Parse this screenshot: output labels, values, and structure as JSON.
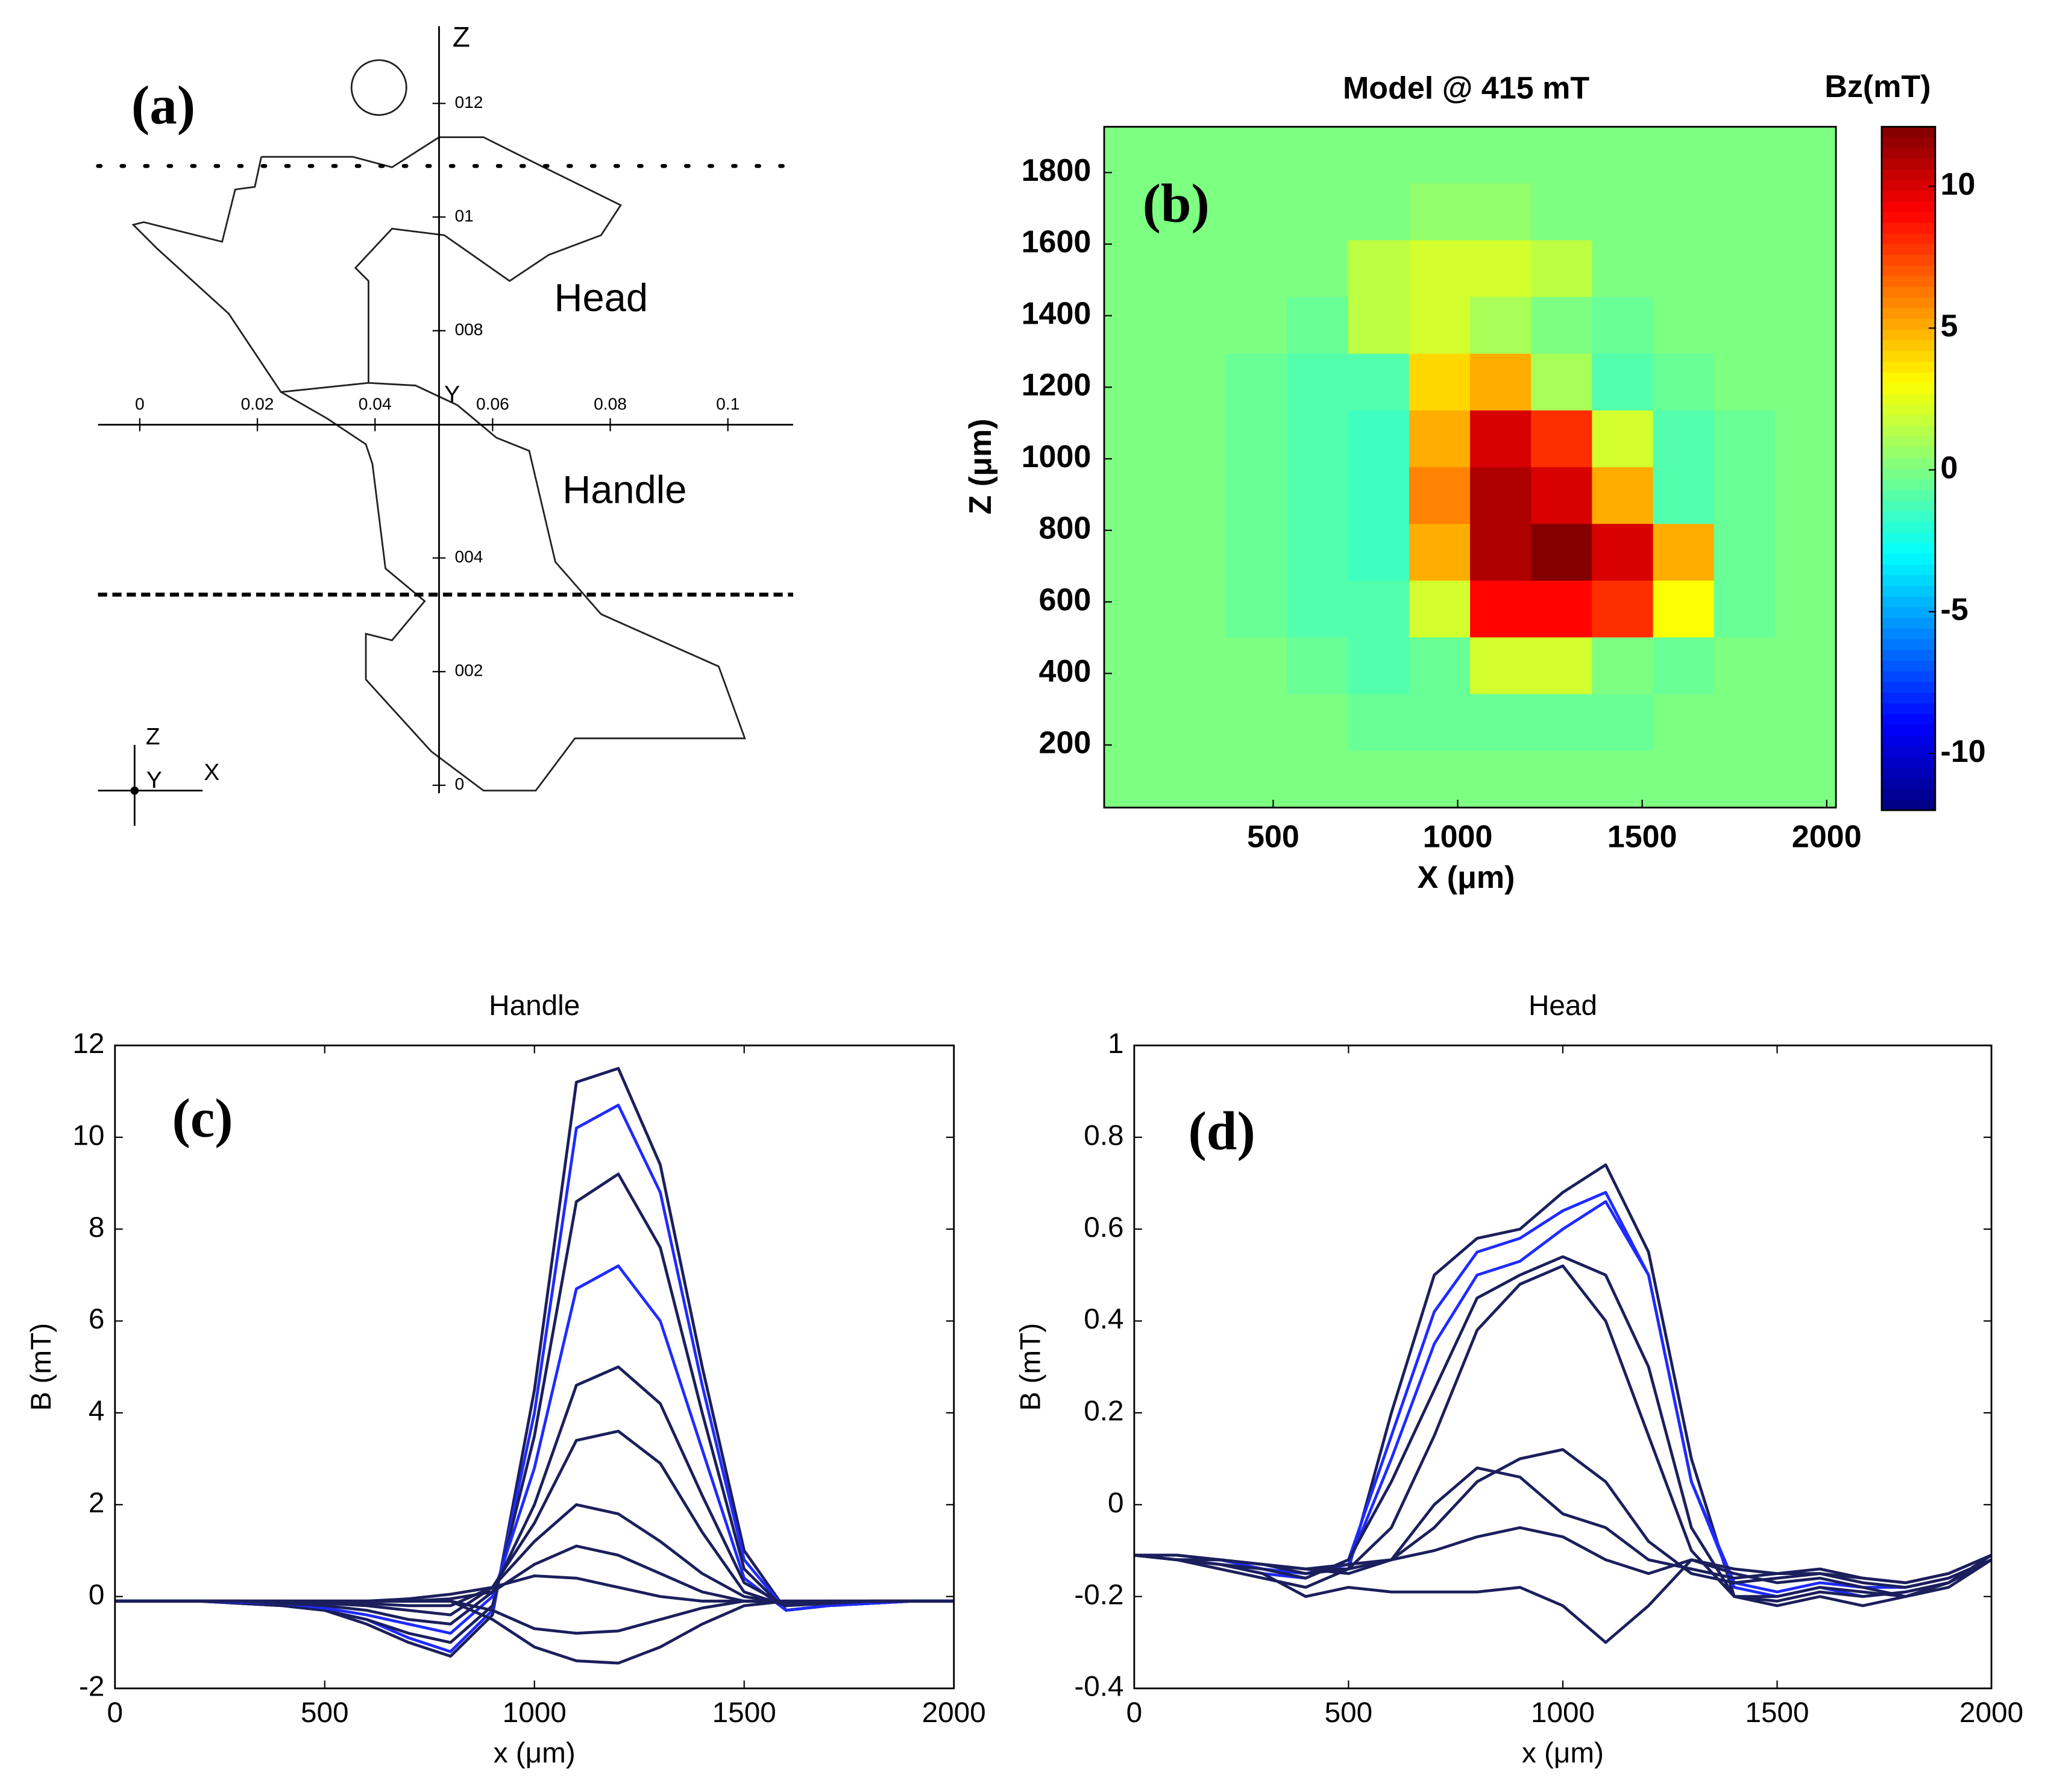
{
  "chart_data": [
    {
      "type": "diagram",
      "panel_label": "(a)",
      "xlim": [
        -0.0071,
        0.1111
      ],
      "xticks": [
        0,
        0.02,
        0.04,
        0.06,
        0.08,
        0.1
      ],
      "zlim": [
        -0.0014,
        0.1336
      ],
      "zticks": [
        0,
        {
          "value": 0.02,
          "label": "002"
        },
        {
          "value": 0.04,
          "label": "004"
        },
        {
          "value": 0.08,
          "label": "008"
        },
        {
          "value": 0.1,
          "label": "01"
        },
        {
          "value": 0.12,
          "label": "012"
        }
      ],
      "z_label": "Z",
      "y_label": "Y",
      "annotations": [
        "Head",
        "Handle"
      ],
      "triad": [
        "Z",
        "Y",
        "X"
      ]
    },
    {
      "type": "heatmap",
      "panel_label": "(b)",
      "title": "Model @ 415 mT",
      "colorbar_label": "Bz(mT)",
      "xlabel": "X (μm)",
      "ylabel": "Z (μm)",
      "xlim": [
        42,
        2025
      ],
      "xticks": [
        500,
        1000,
        1500,
        2000
      ],
      "ylim": [
        25,
        1928
      ],
      "yticks": [
        200,
        400,
        600,
        800,
        1000,
        1200,
        1400,
        1600,
        1800
      ],
      "clim": [
        -12,
        12.1
      ],
      "cticks": [
        -10,
        -5,
        0,
        5,
        10
      ],
      "colormap": "jet",
      "values": [
        [
          0,
          0,
          0,
          0,
          0,
          0,
          0,
          0,
          0,
          0,
          0,
          0
        ],
        [
          0,
          0,
          0,
          0,
          0,
          0.5,
          0.5,
          0,
          0,
          0,
          0,
          0
        ],
        [
          0,
          0,
          0,
          0,
          1.5,
          2,
          2,
          1.5,
          0,
          0,
          0,
          0
        ],
        [
          0,
          0,
          0,
          -0.5,
          1.5,
          2,
          1,
          0,
          -0.5,
          0,
          0,
          0
        ],
        [
          0,
          0,
          -0.5,
          -1,
          -1,
          4,
          5,
          1,
          -1,
          -0.5,
          0,
          0
        ],
        [
          0,
          0,
          -0.5,
          -1,
          -1.5,
          5,
          10,
          8,
          2,
          -1,
          -0.5,
          0
        ],
        [
          0,
          0,
          -0.5,
          -1,
          -1.5,
          6,
          11,
          10,
          5,
          -1,
          -0.5,
          0
        ],
        [
          0,
          0,
          -0.5,
          -1,
          -1.5,
          5,
          11,
          12,
          10,
          5,
          -0.5,
          0
        ],
        [
          0,
          0,
          -0.5,
          -1,
          -1,
          2,
          9,
          9,
          8,
          3,
          -0.5,
          0
        ],
        [
          0,
          0,
          0,
          -0.5,
          -1,
          -0.5,
          2,
          2,
          0,
          -0.5,
          0,
          0
        ],
        [
          0,
          0,
          0,
          0,
          -0.5,
          -0.5,
          -0.5,
          -0.5,
          -0.5,
          0,
          0,
          0
        ],
        [
          0,
          0,
          0,
          0,
          0,
          0,
          0,
          0,
          0,
          0,
          0,
          0
        ]
      ]
    },
    {
      "type": "line",
      "panel_label": "(c)",
      "title": "Handle",
      "xlabel": "x (μm)",
      "ylabel": "B (mT)",
      "xlim": [
        0,
        2000
      ],
      "xticks": [
        0,
        500,
        1000,
        1500,
        2000
      ],
      "ylim": [
        -2,
        12
      ],
      "yticks": [
        -2,
        0,
        2,
        4,
        6,
        8,
        10,
        12
      ],
      "x": [
        0,
        100,
        200,
        300,
        400,
        500,
        600,
        700,
        800,
        900,
        1000,
        1100,
        1200,
        1300,
        1400,
        1500,
        1600,
        1700,
        1800,
        1900,
        2000
      ],
      "series": [
        {
          "color": "#1b1f5c",
          "values": [
            -0.1,
            -0.1,
            -0.1,
            -0.15,
            -0.2,
            -0.3,
            -0.6,
            -1.0,
            -1.3,
            -0.4,
            4.5,
            11.2,
            11.5,
            9.4,
            5.0,
            1.0,
            -0.3,
            -0.2,
            -0.15,
            -0.1,
            -0.1
          ]
        },
        {
          "color": "#1f2bff",
          "values": [
            -0.1,
            -0.1,
            -0.1,
            -0.15,
            -0.2,
            -0.3,
            -0.5,
            -0.9,
            -1.2,
            -0.3,
            4.0,
            10.2,
            10.7,
            8.8,
            4.6,
            0.8,
            -0.3,
            -0.2,
            -0.15,
            -0.1,
            -0.1
          ]
        },
        {
          "color": "#1b1f5c",
          "values": [
            -0.1,
            -0.1,
            -0.1,
            -0.15,
            -0.2,
            -0.3,
            -0.5,
            -0.8,
            -1.0,
            -0.2,
            3.5,
            8.6,
            9.2,
            7.6,
            4.0,
            0.6,
            -0.3,
            -0.2,
            -0.15,
            -0.1,
            -0.1
          ]
        },
        {
          "color": "#1f2bff",
          "values": [
            -0.1,
            -0.1,
            -0.1,
            -0.12,
            -0.15,
            -0.25,
            -0.4,
            -0.6,
            -0.8,
            0.0,
            2.8,
            6.7,
            7.2,
            6.0,
            3.2,
            0.4,
            -0.3,
            -0.2,
            -0.15,
            -0.1,
            -0.1
          ]
        },
        {
          "color": "#1b1f5c",
          "values": [
            -0.1,
            -0.1,
            -0.1,
            -0.1,
            -0.15,
            -0.2,
            -0.3,
            -0.5,
            -0.6,
            0.1,
            2.0,
            4.6,
            5.0,
            4.2,
            2.2,
            0.3,
            -0.2,
            -0.15,
            -0.1,
            -0.1,
            -0.1
          ]
        },
        {
          "color": "#1b1f5c",
          "values": [
            -0.1,
            -0.1,
            -0.1,
            -0.1,
            -0.12,
            -0.15,
            -0.2,
            -0.3,
            -0.4,
            0.2,
            1.6,
            3.4,
            3.6,
            2.9,
            1.4,
            0.1,
            -0.2,
            -0.15,
            -0.1,
            -0.1,
            -0.1
          ]
        },
        {
          "color": "#1b1f5c",
          "values": [
            -0.1,
            -0.1,
            -0.1,
            -0.1,
            -0.1,
            -0.12,
            -0.15,
            -0.2,
            -0.2,
            0.2,
            1.2,
            2.0,
            1.8,
            1.2,
            0.5,
            0.0,
            -0.15,
            -0.12,
            -0.1,
            -0.1,
            -0.1
          ]
        },
        {
          "color": "#1b1f5c",
          "values": [
            -0.1,
            -0.1,
            -0.1,
            -0.1,
            -0.1,
            -0.1,
            -0.1,
            -0.1,
            -0.05,
            0.1,
            0.7,
            1.1,
            0.9,
            0.5,
            0.1,
            -0.1,
            -0.12,
            -0.1,
            -0.1,
            -0.1,
            -0.1
          ]
        },
        {
          "color": "#1b1f5c",
          "values": [
            -0.1,
            -0.1,
            -0.1,
            -0.1,
            -0.1,
            -0.1,
            -0.1,
            -0.05,
            0.05,
            0.2,
            0.45,
            0.4,
            0.2,
            0.0,
            -0.1,
            -0.1,
            -0.1,
            -0.1,
            -0.1,
            -0.1,
            -0.1
          ]
        },
        {
          "color": "#1b1f5c",
          "values": [
            -0.1,
            -0.1,
            -0.1,
            -0.1,
            -0.1,
            -0.1,
            -0.1,
            -0.1,
            -0.1,
            -0.3,
            -0.7,
            -0.8,
            -0.75,
            -0.5,
            -0.25,
            -0.1,
            -0.1,
            -0.1,
            -0.1,
            -0.1,
            -0.1
          ]
        },
        {
          "color": "#1b1f5c",
          "values": [
            -0.1,
            -0.1,
            -0.1,
            -0.1,
            -0.1,
            -0.1,
            -0.1,
            -0.1,
            -0.1,
            -0.5,
            -1.1,
            -1.4,
            -1.45,
            -1.1,
            -0.6,
            -0.2,
            -0.1,
            -0.1,
            -0.1,
            -0.1,
            -0.1
          ]
        }
      ]
    },
    {
      "type": "line",
      "panel_label": "(d)",
      "title": "Head",
      "xlabel": "x (μm)",
      "ylabel": "B (mT)",
      "xlim": [
        0,
        2000
      ],
      "xticks": [
        0,
        500,
        1000,
        1500,
        2000
      ],
      "ylim": [
        -0.4,
        1
      ],
      "yticks": [
        -0.4,
        -0.2,
        0,
        0.2,
        0.4,
        0.6,
        0.8,
        1
      ],
      "x": [
        0,
        100,
        200,
        300,
        400,
        500,
        600,
        700,
        800,
        900,
        1000,
        1100,
        1200,
        1300,
        1400,
        1500,
        1600,
        1700,
        1800,
        1900,
        2000
      ],
      "series": [
        {
          "color": "#1b1f5c",
          "values": [
            -0.11,
            -0.12,
            -0.14,
            -0.16,
            -0.18,
            -0.14,
            0.2,
            0.5,
            0.58,
            0.6,
            0.68,
            0.74,
            0.55,
            0.1,
            -0.2,
            -0.22,
            -0.2,
            -0.22,
            -0.2,
            -0.18,
            -0.12
          ]
        },
        {
          "color": "#1f2bff",
          "values": [
            -0.11,
            -0.12,
            -0.13,
            -0.15,
            -0.16,
            -0.12,
            0.15,
            0.42,
            0.55,
            0.58,
            0.64,
            0.68,
            0.5,
            0.05,
            -0.18,
            -0.2,
            -0.18,
            -0.2,
            -0.19,
            -0.17,
            -0.12
          ]
        },
        {
          "color": "#1f2bff",
          "values": [
            -0.11,
            -0.12,
            -0.12,
            -0.14,
            -0.15,
            -0.13,
            0.1,
            0.35,
            0.5,
            0.53,
            0.6,
            0.66,
            0.5,
            0.05,
            -0.17,
            -0.19,
            -0.17,
            -0.18,
            -0.18,
            -0.16,
            -0.12
          ]
        },
        {
          "color": "#1b1f5c",
          "values": [
            -0.11,
            -0.12,
            -0.13,
            -0.14,
            -0.16,
            -0.12,
            0.05,
            0.25,
            0.45,
            0.5,
            0.54,
            0.5,
            0.3,
            -0.05,
            -0.2,
            -0.21,
            -0.19,
            -0.2,
            -0.19,
            -0.17,
            -0.12
          ]
        },
        {
          "color": "#1b1f5c",
          "values": [
            -0.11,
            -0.12,
            -0.12,
            -0.13,
            -0.15,
            -0.14,
            -0.05,
            0.15,
            0.38,
            0.48,
            0.52,
            0.4,
            0.15,
            -0.1,
            -0.2,
            -0.2,
            -0.18,
            -0.19,
            -0.2,
            -0.17,
            -0.12
          ]
        },
        {
          "color": "#1b1f5c",
          "values": [
            -0.11,
            -0.12,
            -0.12,
            -0.13,
            -0.14,
            -0.15,
            -0.12,
            -0.05,
            0.05,
            0.1,
            0.12,
            0.05,
            -0.08,
            -0.15,
            -0.17,
            -0.16,
            -0.15,
            -0.17,
            -0.18,
            -0.16,
            -0.12
          ]
        },
        {
          "color": "#1b1f5c",
          "values": [
            -0.11,
            -0.11,
            -0.12,
            -0.13,
            -0.14,
            -0.14,
            -0.12,
            0.0,
            0.08,
            0.06,
            -0.02,
            -0.05,
            -0.12,
            -0.14,
            -0.16,
            -0.15,
            -0.14,
            -0.16,
            -0.17,
            -0.15,
            -0.11
          ]
        },
        {
          "color": "#1b1f5c",
          "values": [
            -0.11,
            -0.11,
            -0.12,
            -0.13,
            -0.14,
            -0.13,
            -0.12,
            -0.1,
            -0.07,
            -0.05,
            -0.07,
            -0.12,
            -0.15,
            -0.12,
            -0.14,
            -0.15,
            -0.15,
            -0.16,
            -0.17,
            -0.15,
            -0.11
          ]
        },
        {
          "color": "#1b1f5c",
          "values": [
            -0.11,
            -0.12,
            -0.13,
            -0.15,
            -0.2,
            -0.18,
            -0.19,
            -0.19,
            -0.19,
            -0.18,
            -0.22,
            -0.3,
            -0.22,
            -0.12,
            -0.15,
            -0.17,
            -0.16,
            -0.18,
            -0.2,
            -0.17,
            -0.11
          ]
        }
      ]
    }
  ]
}
